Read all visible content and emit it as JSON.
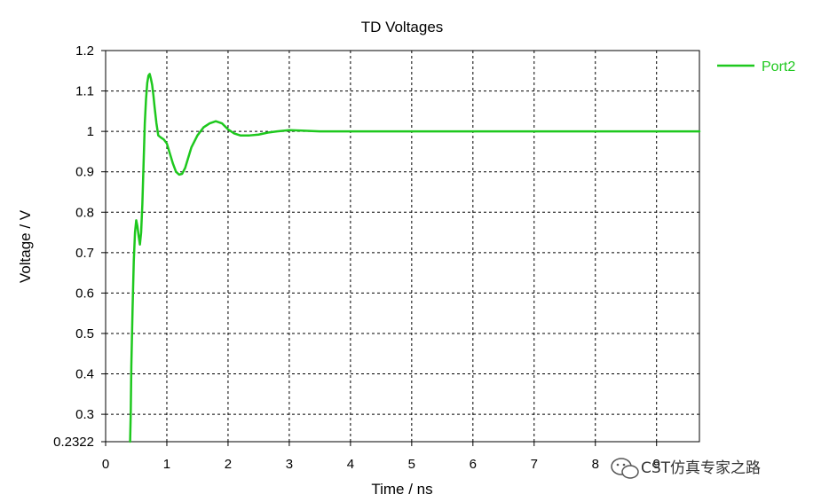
{
  "chart_data": {
    "type": "line",
    "title": "TD Voltages",
    "xlabel": "Time / ns",
    "ylabel": "Voltage / V",
    "xlim": [
      0,
      9.7
    ],
    "ylim": [
      0.2322,
      1.2
    ],
    "x_ticks": [
      0,
      1,
      2,
      3,
      4,
      5,
      6,
      7,
      8,
      9
    ],
    "y_ticks": [
      0.2322,
      0.3,
      0.4,
      0.5,
      0.6,
      0.7,
      0.8,
      0.9,
      1,
      1.1,
      1.2
    ],
    "y_tick_labels": [
      "0.2322",
      "0.3",
      "0.4",
      "0.5",
      "0.6",
      "0.7",
      "0.8",
      "0.9",
      "1",
      "1.1",
      "1.2"
    ],
    "grid": true,
    "legend_position": "top-right",
    "series": [
      {
        "name": "Port2",
        "color": "#1ec81e",
        "x": [
          0.4,
          0.41,
          0.42,
          0.44,
          0.46,
          0.48,
          0.5,
          0.52,
          0.54,
          0.56,
          0.58,
          0.6,
          0.62,
          0.64,
          0.66,
          0.68,
          0.7,
          0.72,
          0.74,
          0.76,
          0.78,
          0.8,
          0.83,
          0.86,
          0.9,
          0.95,
          1.0,
          1.05,
          1.1,
          1.15,
          1.2,
          1.25,
          1.3,
          1.35,
          1.4,
          1.5,
          1.6,
          1.7,
          1.8,
          1.9,
          2.0,
          2.1,
          2.2,
          2.35,
          2.5,
          2.65,
          2.8,
          3.0,
          3.2,
          3.5,
          4.0,
          5.0,
          6.0,
          7.0,
          8.0,
          9.0,
          9.7
        ],
        "y": [
          0.2322,
          0.3,
          0.42,
          0.56,
          0.68,
          0.75,
          0.78,
          0.765,
          0.74,
          0.72,
          0.75,
          0.82,
          0.92,
          1.02,
          1.08,
          1.12,
          1.138,
          1.142,
          1.13,
          1.115,
          1.09,
          1.06,
          1.02,
          0.99,
          0.985,
          0.98,
          0.97,
          0.945,
          0.92,
          0.9,
          0.893,
          0.895,
          0.91,
          0.935,
          0.96,
          0.99,
          1.01,
          1.02,
          1.025,
          1.02,
          1.005,
          0.995,
          0.99,
          0.99,
          0.992,
          0.997,
          1.0,
          1.003,
          1.002,
          1.0,
          1.0,
          1.0,
          1.0,
          1.0,
          1.0,
          1.0,
          1.0
        ]
      }
    ]
  },
  "watermark": {
    "text": "CST仿真专家之路",
    "icon": "wechat-icon"
  }
}
